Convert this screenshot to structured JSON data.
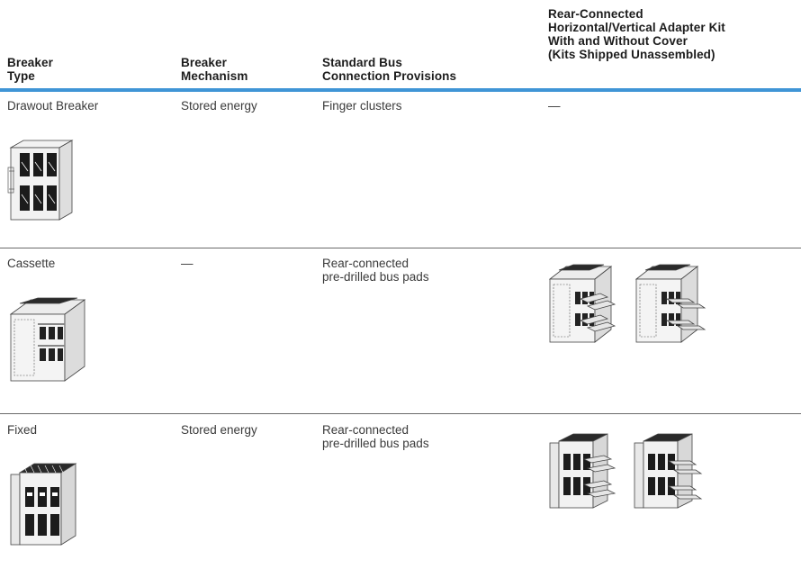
{
  "columns": [
    {
      "lines": [
        "Breaker",
        "Type"
      ]
    },
    {
      "lines": [
        "Breaker",
        "Mechanism"
      ]
    },
    {
      "lines": [
        "Standard Bus",
        "Connection Provisions"
      ]
    },
    {
      "lines": [
        "Rear-Connected",
        "Horizontal/Vertical Adapter Kit",
        "With and Without Cover",
        "(Kits Shipped Unassembled)"
      ]
    }
  ],
  "rows": [
    {
      "type": "Drawout Breaker",
      "mechanism": "Stored energy",
      "bus": [
        "Finger clusters"
      ],
      "kit": "—",
      "type_image": "drawout-breaker-drawing",
      "kit_image": ""
    },
    {
      "type": "Cassette",
      "mechanism": "—",
      "bus": [
        "Rear-connected",
        "pre-drilled bus pads"
      ],
      "kit": "",
      "type_image": "cassette-drawing",
      "kit_image": "cassette-adapter-kit-drawings"
    },
    {
      "type": "Fixed",
      "mechanism": "Stored energy",
      "bus": [
        "Rear-connected",
        "pre-drilled bus pads"
      ],
      "kit": "",
      "type_image": "fixed-breaker-drawing",
      "kit_image": "fixed-adapter-kit-drawings"
    }
  ],
  "colors": {
    "accent_rule": "#3f95d6",
    "row_rule": "#6b6b6b"
  }
}
